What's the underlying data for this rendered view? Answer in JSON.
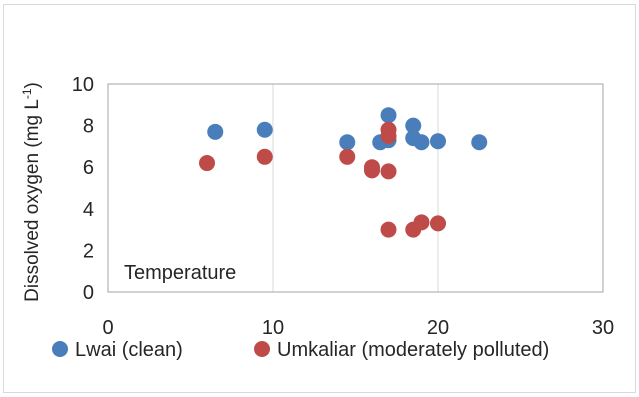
{
  "chart_data": {
    "type": "scatter",
    "ylabel": "Dissolved oxygen  (mg L",
    "ylabel_sup": "-1",
    "ylabel_close": ")",
    "annotation": "Temperature",
    "xlim": [
      0,
      30
    ],
    "ylim": [
      0,
      10
    ],
    "x_ticks": [
      0,
      10,
      20,
      30
    ],
    "y_ticks": [
      0,
      2,
      4,
      6,
      8,
      10
    ],
    "grid": {
      "vertical": true,
      "horizontal": false
    },
    "legend_position": "bottom",
    "series": [
      {
        "name": "Lwai (clean)",
        "color": "#4a7ebb",
        "points": [
          {
            "x": 6.5,
            "y": 7.7
          },
          {
            "x": 9.5,
            "y": 7.8
          },
          {
            "x": 14.5,
            "y": 7.2
          },
          {
            "x": 16.5,
            "y": 7.2
          },
          {
            "x": 17.0,
            "y": 8.5
          },
          {
            "x": 17.0,
            "y": 7.3
          },
          {
            "x": 18.5,
            "y": 8.0
          },
          {
            "x": 18.5,
            "y": 7.4
          },
          {
            "x": 19.0,
            "y": 7.2
          },
          {
            "x": 20.0,
            "y": 7.25
          },
          {
            "x": 22.5,
            "y": 7.2
          }
        ]
      },
      {
        "name": "Umkaliar (moderately polluted)",
        "color": "#be4b48",
        "points": [
          {
            "x": 6.0,
            "y": 6.2
          },
          {
            "x": 9.5,
            "y": 6.5
          },
          {
            "x": 14.5,
            "y": 6.5
          },
          {
            "x": 16.0,
            "y": 6.0
          },
          {
            "x": 16.0,
            "y": 5.85
          },
          {
            "x": 17.0,
            "y": 5.8
          },
          {
            "x": 17.0,
            "y": 7.8
          },
          {
            "x": 17.0,
            "y": 7.5
          },
          {
            "x": 17.0,
            "y": 3.0
          },
          {
            "x": 18.5,
            "y": 3.0
          },
          {
            "x": 19.0,
            "y": 3.35
          },
          {
            "x": 20.0,
            "y": 3.3
          }
        ]
      }
    ]
  }
}
